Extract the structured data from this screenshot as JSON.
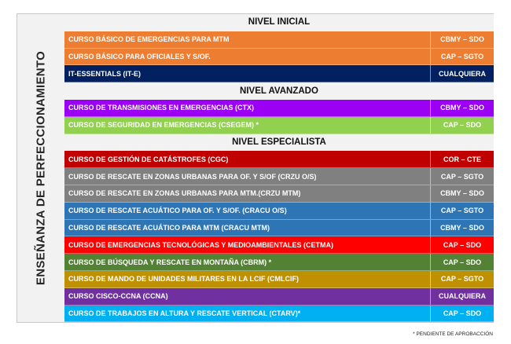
{
  "side_title": "ENSEÑANZA DE PERFECCIONAMIENTO",
  "sections": [
    {
      "title": "NIVEL INICIAL",
      "courses": [
        {
          "name": "CURSO BÁSICO DE EMERGENCIAS PARA MTM",
          "rank": "CBMY – SDO",
          "color": "#ED7D31"
        },
        {
          "name": "CURSO BÁSICO PARA OFICIALES Y S/OF.",
          "rank": "CAP – SGTO",
          "color": "#ED7D31"
        },
        {
          "name": "IT-ESSENTIALS (IT-E)",
          "rank": "CUALQUIERA",
          "color": "#002060"
        }
      ]
    },
    {
      "title": "NIVEL AVANZADO",
      "courses": [
        {
          "name": "CURSO DE TRANSMISIONES EN EMERGENCIAS (CTX)",
          "rank": "CBMY – SDO",
          "color": "#9B00F5"
        },
        {
          "name": "CURSO DE SEGURIDAD EN EMERGENCIAS (CSEGEM) *",
          "rank": "CAP – SDO",
          "color": "#92D050"
        }
      ]
    },
    {
      "title": "NIVEL ESPECIALISTA",
      "courses": [
        {
          "name": "CURSO DE GESTIÓN DE CATÁSTROFES (CGC)",
          "rank": "COR – CTE",
          "color": "#C00000"
        },
        {
          "name": "CURSO DE RESCATE EN ZONAS URBANAS PARA OF. Y S/OF (CRZU O/S)",
          "rank": "CAP – SGTO",
          "color": "#808080"
        },
        {
          "name": "CURSO DE RESCATE EN ZONAS URBANAS PARA MTM.(CRZU MTM)",
          "rank": "CBMY – SDO",
          "color": "#808080"
        },
        {
          "name": "CURSO DE RESCATE ACUÁTICO PARA OF. Y S/OF. (CRACU O/S)",
          "rank": "CAP – SGTO",
          "color": "#2E75B6"
        },
        {
          "name": "CURSO DE RESCATE ACUÁTICO PARA MTM (CRACU MTM)",
          "rank": "CBMY – SDO",
          "color": "#2E75B6"
        },
        {
          "name": "CURSO DE EMERGENCIAS TECNOLÓGICAS Y MEDIOAMBIENTALES (CETMA)",
          "rank": "CAP – SDO",
          "color": "#FF0000"
        },
        {
          "name": "CURSO DE BÚSQUEDA Y RESCATE EN MONTAÑA (CBRM) *",
          "rank": "CAP – SDO",
          "color": "#548235"
        },
        {
          "name": "CURSO DE MANDO DE UNIDADES MILITARES EN LA LCIF (CMLCIF)",
          "rank": "CAP – SGTO",
          "color": "#BF9000"
        },
        {
          "name": "CURSO CISCO-CCNA (CCNA)",
          "rank": "CUALQUIERA",
          "color": "#7030A0"
        },
        {
          "name": "CURSO DE TRABAJOS EN ALTURA Y RESCATE VERTICAL  (CTARV)*",
          "rank": "CAP – SDO",
          "color": "#00B0F0"
        }
      ]
    }
  ],
  "footnote": "* PENDIENTE DE APROBACCIÓN"
}
